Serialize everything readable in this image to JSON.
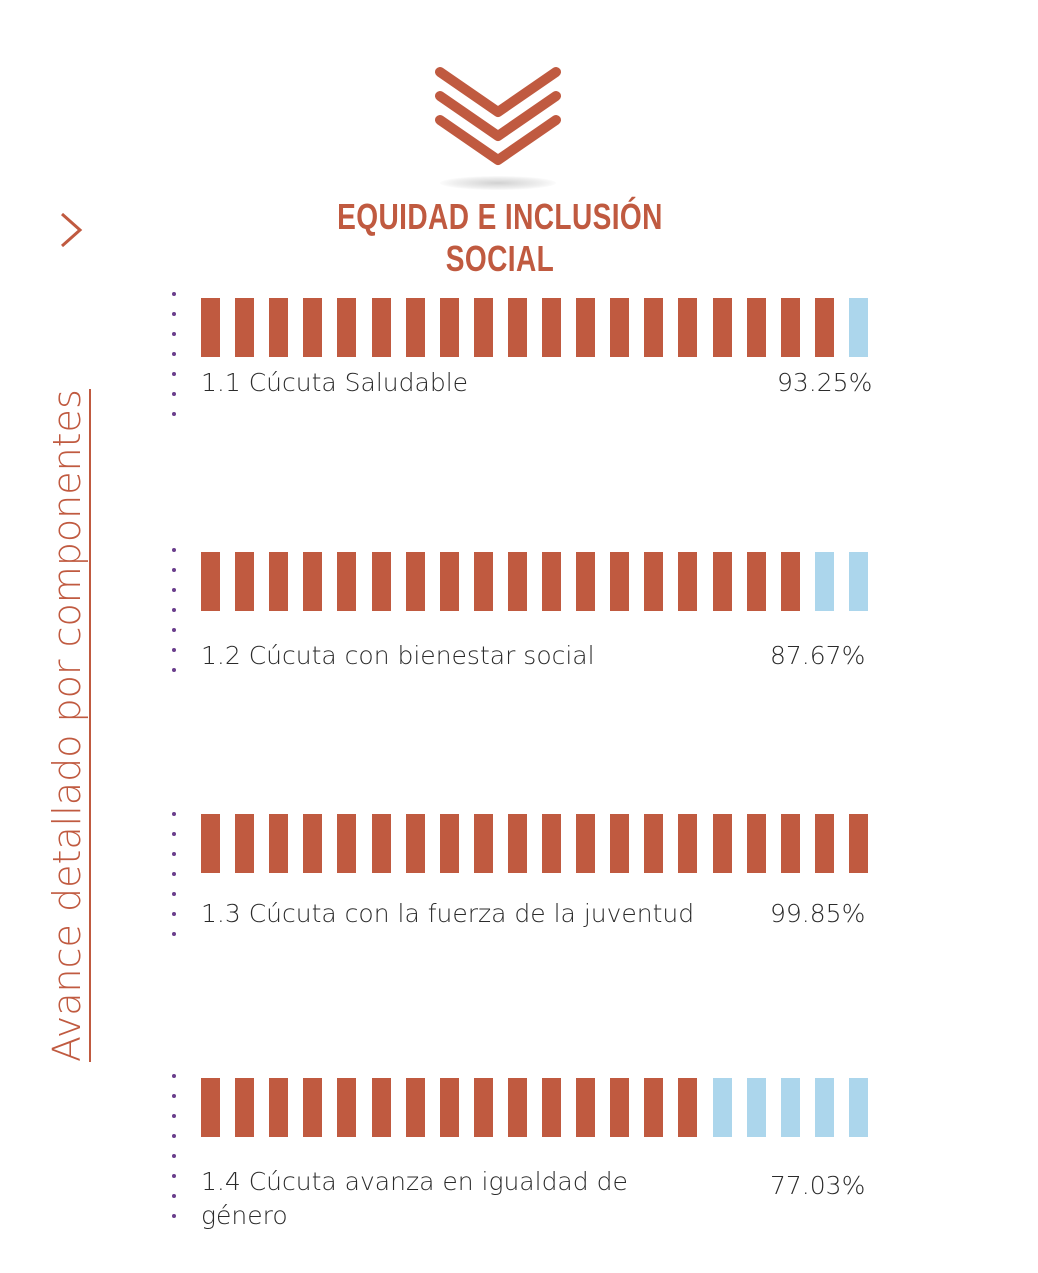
{
  "side_title": "Avance detallado por  componentes",
  "title": "EQUIDAD E INCLUSIÓN SOCIAL",
  "colors": {
    "accent": "#c05a40",
    "filled": "#c05a40",
    "empty": "#acd6ec",
    "dots": "#6a3e8c",
    "text": "#2b2b2b"
  },
  "chart_data": {
    "type": "bar",
    "segments_per_bar": 20,
    "items": [
      {
        "label": "1.1 Cúcuta Saludable",
        "value": 93.25,
        "value_label": "93.25%"
      },
      {
        "label": "1.2 Cúcuta con bienestar social",
        "value": 87.67,
        "value_label": "87.67%"
      },
      {
        "label": "1.3 Cúcuta con la fuerza de la juventud",
        "value": 99.85,
        "value_label": "99.85%"
      },
      {
        "label": "1.4 Cúcuta avanza en igualdad de género",
        "value": 77.03,
        "value_label": "77.03%"
      }
    ]
  }
}
